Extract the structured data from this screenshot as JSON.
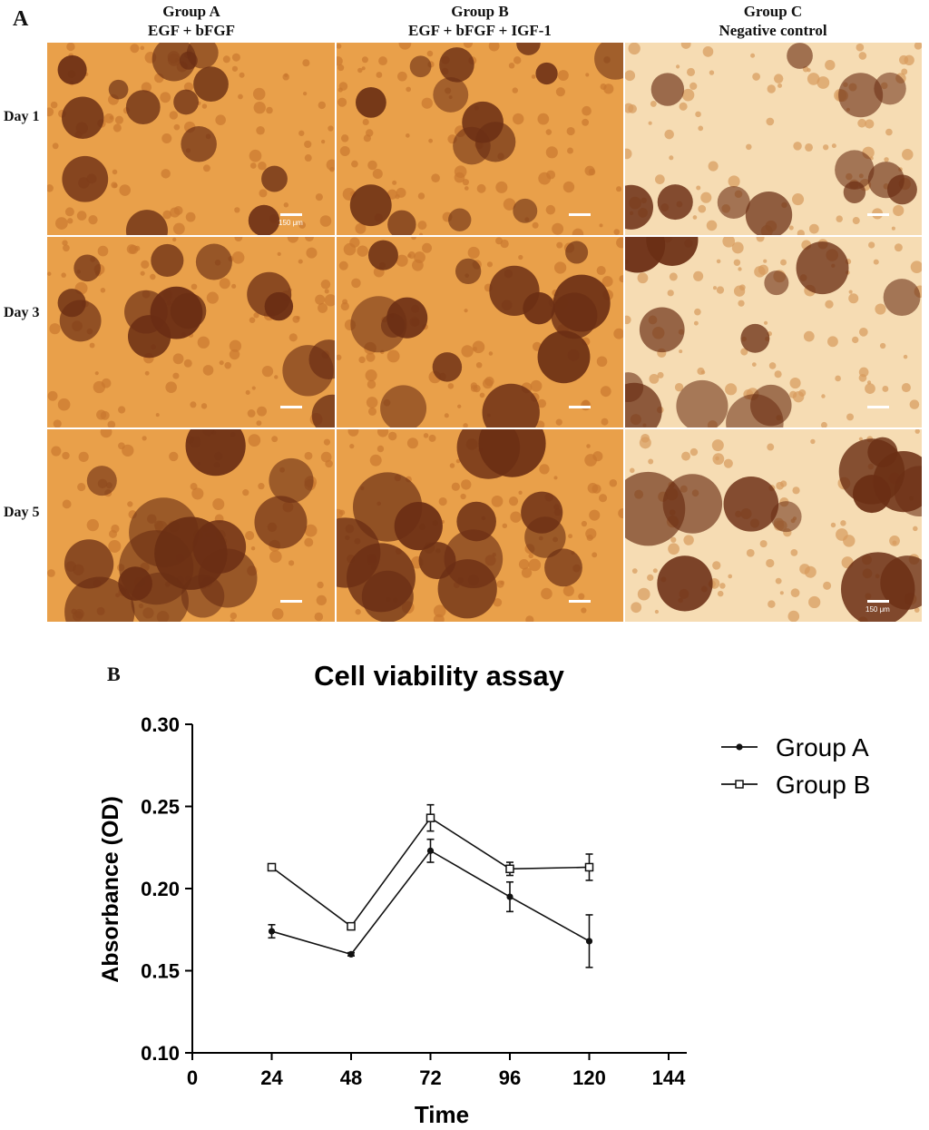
{
  "panel_a": {
    "letter": "A",
    "columns": [
      {
        "title": "Group A",
        "subtitle": "EGF + bFGF"
      },
      {
        "title": "Group B",
        "subtitle": "EGF + bFGF + IGF-1"
      },
      {
        "title": "Group C",
        "subtitle": "Negative control"
      }
    ],
    "rows": [
      "Day 1",
      "Day 3",
      "Day 5"
    ],
    "scale_label": "150 μm",
    "colors": {
      "medium_enriched": "#e9a04a",
      "medium_control": "#f6dcb3",
      "sphere": "#6b2e14"
    }
  },
  "panel_b": {
    "letter": "B"
  },
  "chart_data": {
    "type": "line",
    "title": "Cell viability assay",
    "xlabel": "Time",
    "ylabel": "Absorbance (OD)",
    "xlim": [
      0,
      144
    ],
    "ylim": [
      0.1,
      0.3
    ],
    "xticks": [
      "0",
      "24",
      "48",
      "72",
      "96",
      "120",
      "144"
    ],
    "yticks": [
      "0.10",
      "0.15",
      "0.20",
      "0.25",
      "0.30"
    ],
    "x": [
      24,
      48,
      72,
      96,
      120
    ],
    "series": [
      {
        "name": "Group A",
        "marker": "filled-circle",
        "values": [
          0.174,
          0.16,
          0.223,
          0.195,
          0.168
        ],
        "errors": [
          0.004,
          0.001,
          0.007,
          0.009,
          0.016
        ]
      },
      {
        "name": "Group B",
        "marker": "open-square",
        "values": [
          0.213,
          0.177,
          0.243,
          0.212,
          0.213
        ],
        "errors": [
          0.001,
          0.001,
          0.008,
          0.004,
          0.008
        ]
      }
    ],
    "legend_position": "right",
    "grid": false
  }
}
